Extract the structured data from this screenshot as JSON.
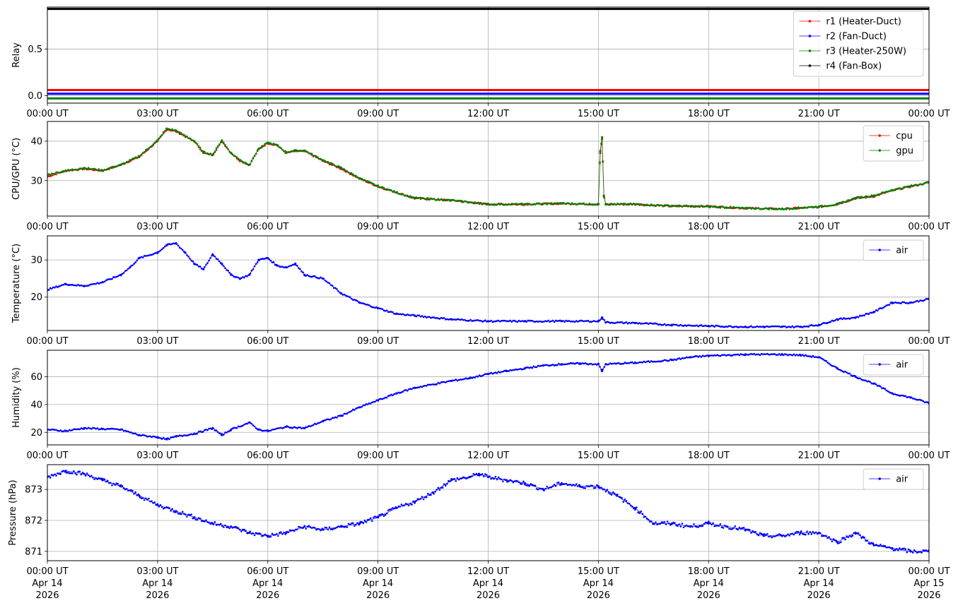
{
  "chart_data": [
    {
      "type": "line",
      "ylabel": "Relay",
      "ylim": [
        -0.08,
        0.95
      ],
      "yticks": [
        {
          "v": 0.0,
          "label": "0.0"
        },
        {
          "v": 0.5,
          "label": "0.5"
        }
      ],
      "legend_position": "top-right",
      "series": [
        {
          "name": "r1 (Heater-Duct)",
          "color": "#ff0000",
          "x": [
            0,
            24
          ],
          "y": [
            0.06,
            0.06
          ]
        },
        {
          "name": "r2 (Fan-Duct)",
          "color": "#0000ff",
          "x": [
            0,
            24
          ],
          "y": [
            0.02,
            0.02
          ]
        },
        {
          "name": "r3 (Heater-250W)",
          "color": "#008000",
          "x": [
            0,
            24
          ],
          "y": [
            -0.03,
            -0.03
          ]
        },
        {
          "name": "r4 (Fan-Box)",
          "color": "#000000",
          "x": [
            0,
            24
          ],
          "y": [
            0.93,
            0.93
          ]
        }
      ]
    },
    {
      "type": "scatter",
      "ylabel": "CPU/GPU (°C)",
      "ylim": [
        21,
        45
      ],
      "yticks": [
        {
          "v": 30,
          "label": "30"
        },
        {
          "v": 40,
          "label": "40"
        }
      ],
      "legend_position": "top-right",
      "series": [
        {
          "name": "cpu",
          "color": "#ff0000",
          "x": [
            0,
            0.5,
            1,
            1.5,
            2,
            2.5,
            3,
            3.25,
            3.5,
            4,
            4.25,
            4.5,
            4.75,
            5,
            5.25,
            5.5,
            5.75,
            6,
            6.25,
            6.5,
            6.75,
            7,
            7.5,
            8,
            8.5,
            9,
            9.5,
            10,
            11,
            12,
            13,
            14,
            15,
            15.05,
            15.1,
            15.15,
            15.2,
            16,
            17,
            18,
            19,
            20,
            21,
            21.5,
            22,
            22.5,
            23,
            23.5,
            24
          ],
          "y": [
            31,
            32.5,
            33,
            32.5,
            34,
            36,
            40,
            43,
            42.5,
            40,
            37,
            36.5,
            40,
            37,
            35,
            34,
            38,
            39.5,
            39,
            37,
            37.5,
            37.5,
            35,
            33,
            30.5,
            28.5,
            27,
            25.5,
            25,
            24,
            24,
            24.2,
            24,
            37,
            40.5,
            26,
            24,
            24,
            23.5,
            23.5,
            23,
            22.8,
            23.3,
            24,
            25.5,
            26,
            27.5,
            28.5,
            29.5
          ]
        },
        {
          "name": "gpu",
          "color": "#008000",
          "x": [
            0,
            0.5,
            1,
            1.5,
            2,
            2.5,
            3,
            3.25,
            3.5,
            4,
            4.25,
            4.5,
            4.75,
            5,
            5.25,
            5.5,
            5.75,
            6,
            6.25,
            6.5,
            6.75,
            7,
            7.5,
            8,
            8.5,
            9,
            9.5,
            10,
            11,
            12,
            13,
            14,
            15,
            15.05,
            15.1,
            15.15,
            15.2,
            16,
            17,
            18,
            19,
            20,
            21,
            21.5,
            22,
            22.5,
            23,
            23.5,
            24
          ],
          "y": [
            31.5,
            32.5,
            33.2,
            32.6,
            34,
            36.2,
            40.2,
            43.2,
            42.7,
            40,
            37.2,
            36.6,
            40.2,
            37,
            35.2,
            34,
            38,
            39.6,
            39,
            37.2,
            37.6,
            37.6,
            35.2,
            33.2,
            30.6,
            28.6,
            27,
            25.6,
            25,
            24,
            24,
            24.2,
            24,
            37.5,
            41,
            26.2,
            24,
            24,
            23.6,
            23.4,
            23,
            22.8,
            23.4,
            24,
            25.6,
            26.2,
            27.6,
            28.6,
            29.6
          ]
        }
      ]
    },
    {
      "type": "scatter",
      "ylabel": "Temperature (°C)",
      "ylim": [
        11,
        36.5
      ],
      "yticks": [
        {
          "v": 20,
          "label": "20"
        },
        {
          "v": 30,
          "label": "30"
        }
      ],
      "legend_position": "top-right",
      "series": [
        {
          "name": "air",
          "color": "#0000ff",
          "x": [
            0,
            0.5,
            1,
            1.5,
            2,
            2.25,
            2.5,
            3,
            3.25,
            3.5,
            3.75,
            4,
            4.25,
            4.5,
            4.75,
            5,
            5.25,
            5.5,
            5.75,
            6,
            6.25,
            6.5,
            6.75,
            7,
            7.5,
            8,
            8.5,
            9,
            9.5,
            10,
            11,
            12,
            13,
            14,
            15,
            15.1,
            15.2,
            16,
            17,
            18,
            19,
            19.5,
            20,
            20.5,
            21,
            21.5,
            22,
            22.5,
            23,
            23.5,
            24
          ],
          "y": [
            22,
            23.5,
            23,
            24,
            26,
            28,
            30.5,
            32,
            34,
            34.5,
            32,
            29,
            27.5,
            31.5,
            29,
            26,
            25,
            26,
            30,
            30.5,
            28.5,
            28,
            29,
            26,
            25,
            21,
            18.5,
            17,
            15.5,
            15,
            14,
            13.5,
            13.5,
            13.5,
            13.5,
            14.5,
            13.2,
            13,
            12.5,
            12.2,
            12,
            12,
            12,
            12,
            12.5,
            14,
            14.5,
            16,
            18.5,
            18.5,
            19.5
          ]
        }
      ]
    },
    {
      "type": "scatter",
      "ylabel": "Humidity (%)",
      "ylim": [
        11,
        79
      ],
      "yticks": [
        {
          "v": 20,
          "label": "20"
        },
        {
          "v": 40,
          "label": "40"
        },
        {
          "v": 60,
          "label": "60"
        }
      ],
      "legend_position": "top-right",
      "series": [
        {
          "name": "air",
          "color": "#0000ff",
          "x": [
            0,
            0.5,
            1,
            1.5,
            2,
            2.5,
            3,
            3.25,
            3.5,
            4,
            4.5,
            4.75,
            5,
            5.5,
            5.75,
            6,
            6.5,
            7,
            7.5,
            8,
            8.5,
            9,
            9.5,
            10,
            11,
            11.5,
            12,
            12.5,
            13,
            13.5,
            14,
            14.5,
            15,
            15.1,
            15.2,
            16,
            17,
            17.5,
            18,
            19,
            20,
            20.5,
            21,
            21.5,
            22,
            22.5,
            23,
            23.5,
            24
          ],
          "y": [
            22,
            21,
            23,
            22.5,
            22,
            18,
            16.5,
            15,
            17,
            19,
            23,
            18,
            22,
            27,
            22,
            21,
            24,
            23,
            28,
            32,
            38,
            43,
            48,
            52,
            57,
            59,
            62,
            64,
            66,
            68,
            69,
            69.5,
            69,
            64,
            69,
            70,
            72,
            74,
            75,
            76,
            76,
            75.5,
            74,
            66,
            60,
            55,
            48,
            45,
            41
          ]
        }
      ]
    },
    {
      "type": "scatter",
      "ylabel": "Pressure (hPa)",
      "ylim": [
        870.7,
        873.8
      ],
      "yticks": [
        {
          "v": 871,
          "label": "871"
        },
        {
          "v": 872,
          "label": "872"
        },
        {
          "v": 873,
          "label": "873"
        }
      ],
      "legend_position": "top-right",
      "series": [
        {
          "name": "air",
          "color": "#0000ff",
          "x": [
            0,
            0.5,
            1,
            1.5,
            2,
            2.5,
            3,
            3.5,
            4,
            4.5,
            5,
            5.5,
            6,
            6.5,
            7,
            7.5,
            8,
            8.5,
            9,
            9.5,
            10,
            10.5,
            11,
            11.5,
            11.75,
            12,
            12.5,
            13,
            13.5,
            14,
            14.5,
            15,
            15.5,
            16,
            16.5,
            17,
            17.5,
            18,
            18.5,
            19,
            19.5,
            20,
            20.5,
            21,
            21.5,
            22,
            22.5,
            23,
            23.5,
            24
          ],
          "y": [
            873.4,
            873.6,
            873.5,
            873.3,
            873.1,
            872.8,
            872.5,
            872.3,
            872.1,
            871.9,
            871.8,
            871.6,
            871.5,
            871.6,
            871.8,
            871.7,
            871.8,
            871.9,
            872.1,
            872.4,
            872.6,
            872.9,
            873.3,
            873.4,
            873.5,
            873.4,
            873.3,
            873.2,
            873.0,
            873.2,
            873.1,
            873.1,
            872.8,
            872.4,
            871.9,
            871.9,
            871.8,
            871.9,
            871.8,
            871.7,
            871.5,
            871.5,
            871.6,
            871.6,
            871.3,
            871.6,
            871.2,
            871.1,
            871.0,
            871.0
          ]
        }
      ]
    }
  ],
  "x_axis": {
    "tick_hours": [
      0,
      3,
      6,
      9,
      12,
      15,
      18,
      21,
      24
    ],
    "tick_labels": [
      "00:00 UT",
      "03:00 UT",
      "06:00 UT",
      "09:00 UT",
      "12:00 UT",
      "15:00 UT",
      "18:00 UT",
      "21:00 UT",
      "00:00 UT"
    ],
    "date_labels": [
      "Apr 14",
      "Apr 14",
      "Apr 14",
      "Apr 14",
      "Apr 14",
      "Apr 14",
      "Apr 14",
      "Apr 14",
      "Apr 15"
    ],
    "year_labels": [
      "2026",
      "2026",
      "2026",
      "2026",
      "2026",
      "2026",
      "2026",
      "2026",
      "2026"
    ]
  }
}
